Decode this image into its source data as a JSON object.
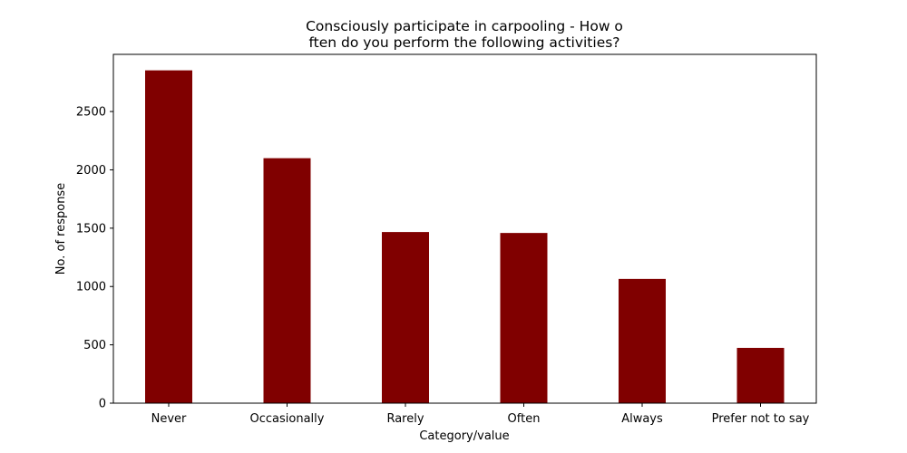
{
  "chart_data": {
    "type": "bar",
    "title_lines": [
      "Consciously participate in carpooling - How o",
      "ften do you perform the following activities?"
    ],
    "xlabel": "Category/value",
    "ylabel": "No. of response",
    "categories": [
      "Never",
      "Occasionally",
      "Rarely",
      "Often",
      "Always",
      "Prefer not to say"
    ],
    "values": [
      2853,
      2100,
      1467,
      1459,
      1065,
      474
    ],
    "ylim": [
      0,
      2990
    ],
    "yticks": [
      0,
      500,
      1000,
      1500,
      2000,
      2500
    ],
    "bar_color": "#800000",
    "grid": false,
    "legend": "none"
  }
}
